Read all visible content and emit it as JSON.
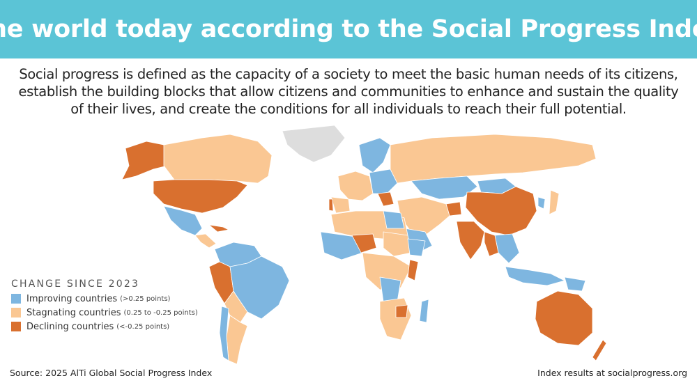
{
  "header": {
    "title": "The world today according to the Social Progress Index",
    "banner_color": "#5BC4D6"
  },
  "subtitle": "Social progress is defined as the capacity of a society to meet the basic human needs of its citizens, establish the building blocks that allow citizens and communities to enhance and sustain the quality of their lives, and create the conditions for all individuals to reach their full potential.",
  "legend": {
    "title": "CHANGE SINCE 2023",
    "items": [
      {
        "label": "Improving countries",
        "note": "(>0.25 points)",
        "color": "#7EB6E0"
      },
      {
        "label": "Stagnating countries",
        "note": "(0.25 to -0.25 points)",
        "color": "#FAC793"
      },
      {
        "label": "Declining countries",
        "note": "(<-0.25 points)",
        "color": "#D9702F"
      }
    ]
  },
  "map": {
    "no_data_color": "#DDDDDD",
    "border_color": "#FFFFFF"
  },
  "footer": {
    "source": "Source: 2025 AlTi Global Social Progress Index",
    "credit": "Index results at socialprogress.org"
  }
}
